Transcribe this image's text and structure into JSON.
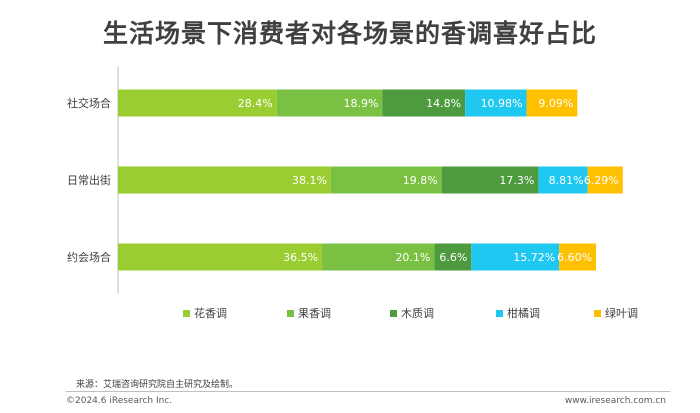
{
  "title": "生活场景下消费者对各场景的香调喜好占比",
  "source": "来源：艾瑞咨询研究院自主研究及绘制。",
  "copyright": "©2024.6 iResearch Inc.",
  "website": "www.iresearch.com.cn",
  "chart_data": {
    "type": "bar",
    "orientation": "horizontal",
    "stacked": true,
    "percent_stacked": true,
    "categories": [
      "社交场合",
      "日常出街",
      "约会场合"
    ],
    "series": [
      {
        "name": "花香调",
        "color": "#9ACD32",
        "values": [
          28.4,
          38.1,
          36.5
        ],
        "labels": [
          "28.4%",
          "38.1%",
          "36.5%"
        ]
      },
      {
        "name": "果香调",
        "color": "#7AC143",
        "values": [
          18.9,
          19.8,
          20.1
        ],
        "labels": [
          "18.9%",
          "19.8%",
          "20.1%"
        ]
      },
      {
        "name": "木质调",
        "color": "#4E9A3E",
        "values": [
          14.8,
          17.3,
          6.6
        ],
        "labels": [
          "14.8%",
          "17.3%",
          "6.6%"
        ]
      },
      {
        "name": "柑橘调",
        "color": "#1FC8F0",
        "values": [
          10.98,
          8.81,
          15.72
        ],
        "labels": [
          "10.98%",
          "8.81%",
          "15.72%"
        ]
      },
      {
        "name": "绿叶调",
        "color": "#FFC000",
        "values": [
          9.09,
          6.29,
          6.6
        ],
        "labels": [
          "9.09%",
          "6.29%",
          "6.60%"
        ]
      }
    ],
    "xlim": [
      0,
      100
    ],
    "legend_position": "bottom",
    "grid": false
  }
}
